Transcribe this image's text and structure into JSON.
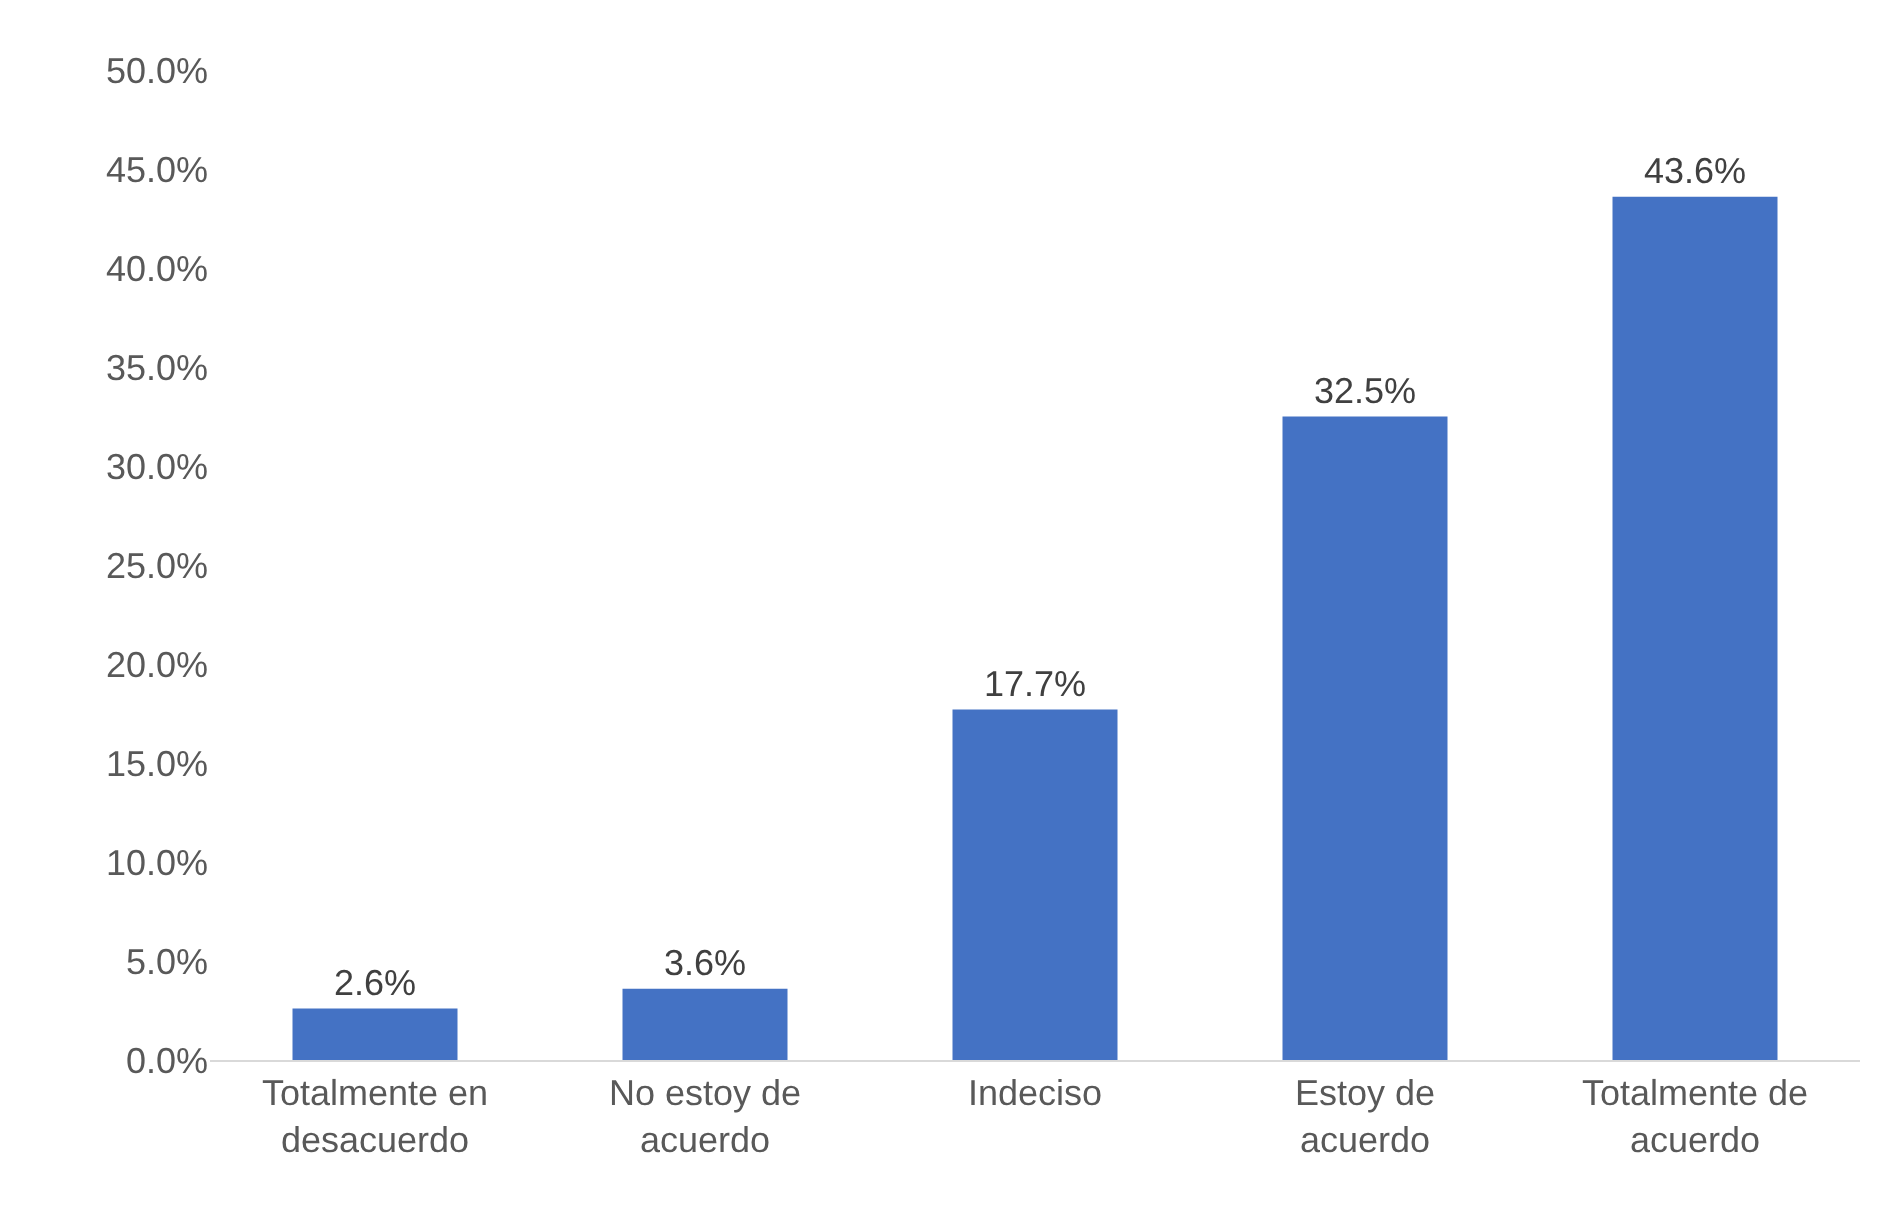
{
  "chart_data": {
    "type": "bar",
    "categories": [
      "Totalmente en desacuerdo",
      "No estoy de acuerdo",
      "Indeciso",
      "Estoy de acuerdo",
      "Totalmente de acuerdo"
    ],
    "values": [
      2.6,
      3.6,
      17.7,
      32.5,
      43.6
    ],
    "value_labels": [
      "2.6%",
      "3.6%",
      "17.7%",
      "32.5%",
      "43.6%"
    ],
    "color": "#4472c4",
    "ylim": [
      0,
      50
    ],
    "yticks": [
      {
        "value": 0,
        "label": "0.0%"
      },
      {
        "value": 5,
        "label": "5.0%"
      },
      {
        "value": 10,
        "label": "10.0%"
      },
      {
        "value": 15,
        "label": "15.0%"
      },
      {
        "value": 20,
        "label": "20.0%"
      },
      {
        "value": 25,
        "label": "25.0%"
      },
      {
        "value": 30,
        "label": "30.0%"
      },
      {
        "value": 35,
        "label": "35.0%"
      },
      {
        "value": 40,
        "label": "40.0%"
      },
      {
        "value": 45,
        "label": "45.0%"
      },
      {
        "value": 50,
        "label": "50.0%"
      }
    ],
    "grid": false
  }
}
